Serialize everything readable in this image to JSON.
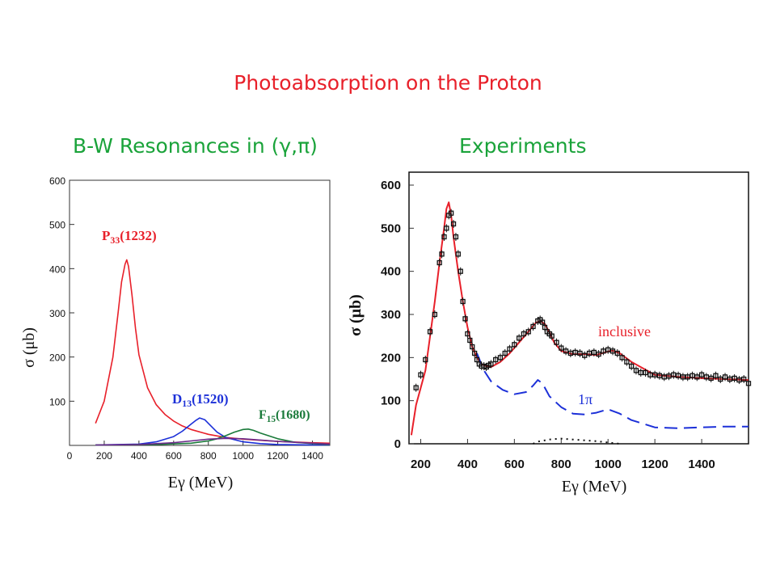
{
  "slide": {
    "title": "Photoabsorption on the Proton",
    "left_heading": "B-W Resonances in (γ,π)",
    "right_heading": "Experiments"
  },
  "chart_data": [
    {
      "type": "line",
      "xlabel": "Eγ  (MeV)",
      "ylabel": "σ  (μb)",
      "xlim": [
        0,
        1500
      ],
      "ylim": [
        0,
        600
      ],
      "xticks": [
        "0",
        "200",
        "400",
        "600",
        "800",
        "1000",
        "1200",
        "1400"
      ],
      "yticks": [
        "100",
        "200",
        "300",
        "400",
        "500",
        "600"
      ],
      "grid": false,
      "series": [
        {
          "name": "P33(1232)",
          "color": "#e8202a",
          "x": [
            150,
            200,
            250,
            280,
            300,
            320,
            330,
            340,
            360,
            380,
            400,
            450,
            500,
            550,
            600,
            650,
            700,
            800,
            900,
            1000,
            1200,
            1400,
            1500
          ],
          "y": [
            50,
            100,
            200,
            300,
            370,
            410,
            420,
            405,
            340,
            265,
            205,
            130,
            92,
            70,
            55,
            44,
            36,
            25,
            18,
            14,
            9,
            6,
            5
          ]
        },
        {
          "name": "D13(1520)",
          "color": "#1c30d8",
          "x": [
            150,
            400,
            500,
            600,
            650,
            700,
            730,
            750,
            780,
            800,
            850,
            900,
            1000,
            1100,
            1200,
            1400,
            1500
          ],
          "y": [
            1,
            3,
            8,
            20,
            32,
            48,
            57,
            62,
            58,
            50,
            30,
            18,
            8,
            4,
            2,
            1,
            1
          ]
        },
        {
          "name": "F15(1680)",
          "color": "#1a7a3a",
          "x": [
            150,
            500,
            700,
            800,
            850,
            900,
            950,
            1000,
            1030,
            1060,
            1100,
            1200,
            1300,
            1400,
            1500
          ],
          "y": [
            1,
            2,
            5,
            10,
            15,
            22,
            30,
            36,
            37,
            34,
            28,
            15,
            7,
            4,
            2
          ]
        },
        {
          "name": "",
          "color": "#6a2a8a",
          "x": [
            150,
            400,
            600,
            700,
            800,
            900,
            1000,
            1100,
            1200,
            1400,
            1500
          ],
          "y": [
            1,
            2,
            6,
            10,
            14,
            16,
            15,
            12,
            9,
            5,
            3
          ]
        }
      ],
      "annotations": [
        {
          "text": "P33(1232)",
          "main": "P",
          "sub": "33",
          "rest": "(1232)",
          "color": "#e8202a"
        },
        {
          "text": "D13(1520)",
          "main": "D",
          "sub": "13",
          "rest": "(1520)",
          "color": "#1c30d8"
        },
        {
          "text": "F15(1680)",
          "main": "F",
          "sub": "15",
          "rest": "(1680)",
          "color": "#1a7a3a"
        }
      ]
    },
    {
      "type": "line+scatter",
      "xlabel": "Eγ  (MeV)",
      "ylabel": "σ  (μb)",
      "xlim": [
        150,
        1600
      ],
      "ylim": [
        0,
        600
      ],
      "xticks": [
        "200",
        "400",
        "600",
        "800",
        "1000",
        "1200",
        "1400"
      ],
      "yticks": [
        "0",
        "100",
        "200",
        "300",
        "400",
        "500",
        "600"
      ],
      "grid": false,
      "series": [
        {
          "name": "inclusive",
          "style": "solid",
          "color": "#e8202a",
          "x": [
            160,
            180,
            200,
            220,
            240,
            260,
            280,
            300,
            310,
            320,
            330,
            340,
            360,
            380,
            400,
            420,
            440,
            460,
            480,
            500,
            540,
            580,
            620,
            660,
            690,
            710,
            730,
            750,
            770,
            800,
            850,
            900,
            950,
            1000,
            1020,
            1050,
            1100,
            1200,
            1300,
            1400,
            1500,
            1600
          ],
          "y": [
            20,
            90,
            130,
            170,
            250,
            330,
            420,
            500,
            545,
            560,
            530,
            480,
            400,
            330,
            270,
            225,
            200,
            185,
            180,
            178,
            190,
            210,
            235,
            260,
            280,
            285,
            278,
            258,
            235,
            215,
            208,
            208,
            206,
            214,
            216,
            210,
            190,
            160,
            155,
            152,
            150,
            148
          ]
        },
        {
          "name": "1π",
          "style": "dashed",
          "color": "#1c30d8",
          "x": [
            440,
            470,
            500,
            550,
            600,
            650,
            680,
            700,
            720,
            750,
            800,
            850,
            900,
            950,
            1000,
            1050,
            1100,
            1200,
            1300,
            1400,
            1500,
            1600
          ],
          "y": [
            210,
            170,
            145,
            125,
            115,
            120,
            135,
            148,
            140,
            110,
            85,
            70,
            68,
            72,
            80,
            70,
            55,
            38,
            36,
            38,
            40,
            40
          ]
        },
        {
          "name": "",
          "style": "dotted",
          "color": "#111111",
          "x": [
            680,
            700,
            750,
            800,
            850,
            900,
            950,
            1000,
            1050
          ],
          "y": [
            0,
            5,
            10,
            12,
            10,
            8,
            6,
            3,
            0
          ]
        },
        {
          "name": "",
          "style": "markers",
          "color": "#111111",
          "x": [
            180,
            200,
            220,
            240,
            260,
            280,
            290,
            300,
            310,
            320,
            330,
            340,
            350,
            360,
            370,
            380,
            390,
            400,
            410,
            420,
            430,
            440,
            450,
            460,
            470,
            480,
            490,
            500,
            520,
            540,
            560,
            580,
            600,
            620,
            640,
            660,
            680,
            700,
            710,
            720,
            730,
            740,
            750,
            760,
            780,
            800,
            820,
            840,
            860,
            880,
            900,
            920,
            940,
            960,
            980,
            1000,
            1020,
            1040,
            1060,
            1080,
            1100,
            1120,
            1140,
            1160,
            1180,
            1200,
            1220,
            1240,
            1260,
            1280,
            1300,
            1320,
            1340,
            1360,
            1380,
            1400,
            1420,
            1440,
            1460,
            1480,
            1500,
            1520,
            1540,
            1560,
            1580,
            1600
          ],
          "y": [
            130,
            160,
            195,
            260,
            300,
            420,
            440,
            480,
            500,
            530,
            535,
            510,
            480,
            440,
            400,
            330,
            290,
            255,
            240,
            225,
            210,
            195,
            185,
            180,
            180,
            178,
            182,
            185,
            195,
            200,
            210,
            220,
            230,
            245,
            255,
            260,
            272,
            285,
            288,
            282,
            270,
            260,
            255,
            250,
            235,
            222,
            215,
            210,
            212,
            210,
            205,
            210,
            212,
            208,
            215,
            218,
            215,
            210,
            200,
            190,
            180,
            170,
            165,
            165,
            160,
            160,
            158,
            155,
            157,
            160,
            158,
            155,
            155,
            158,
            155,
            160,
            155,
            152,
            158,
            150,
            155,
            150,
            152,
            148,
            150,
            140
          ]
        }
      ],
      "annotations": [
        {
          "text": "inclusive",
          "color": "#e8202a"
        },
        {
          "text": "1π",
          "color": "#1c30d8"
        }
      ]
    }
  ]
}
